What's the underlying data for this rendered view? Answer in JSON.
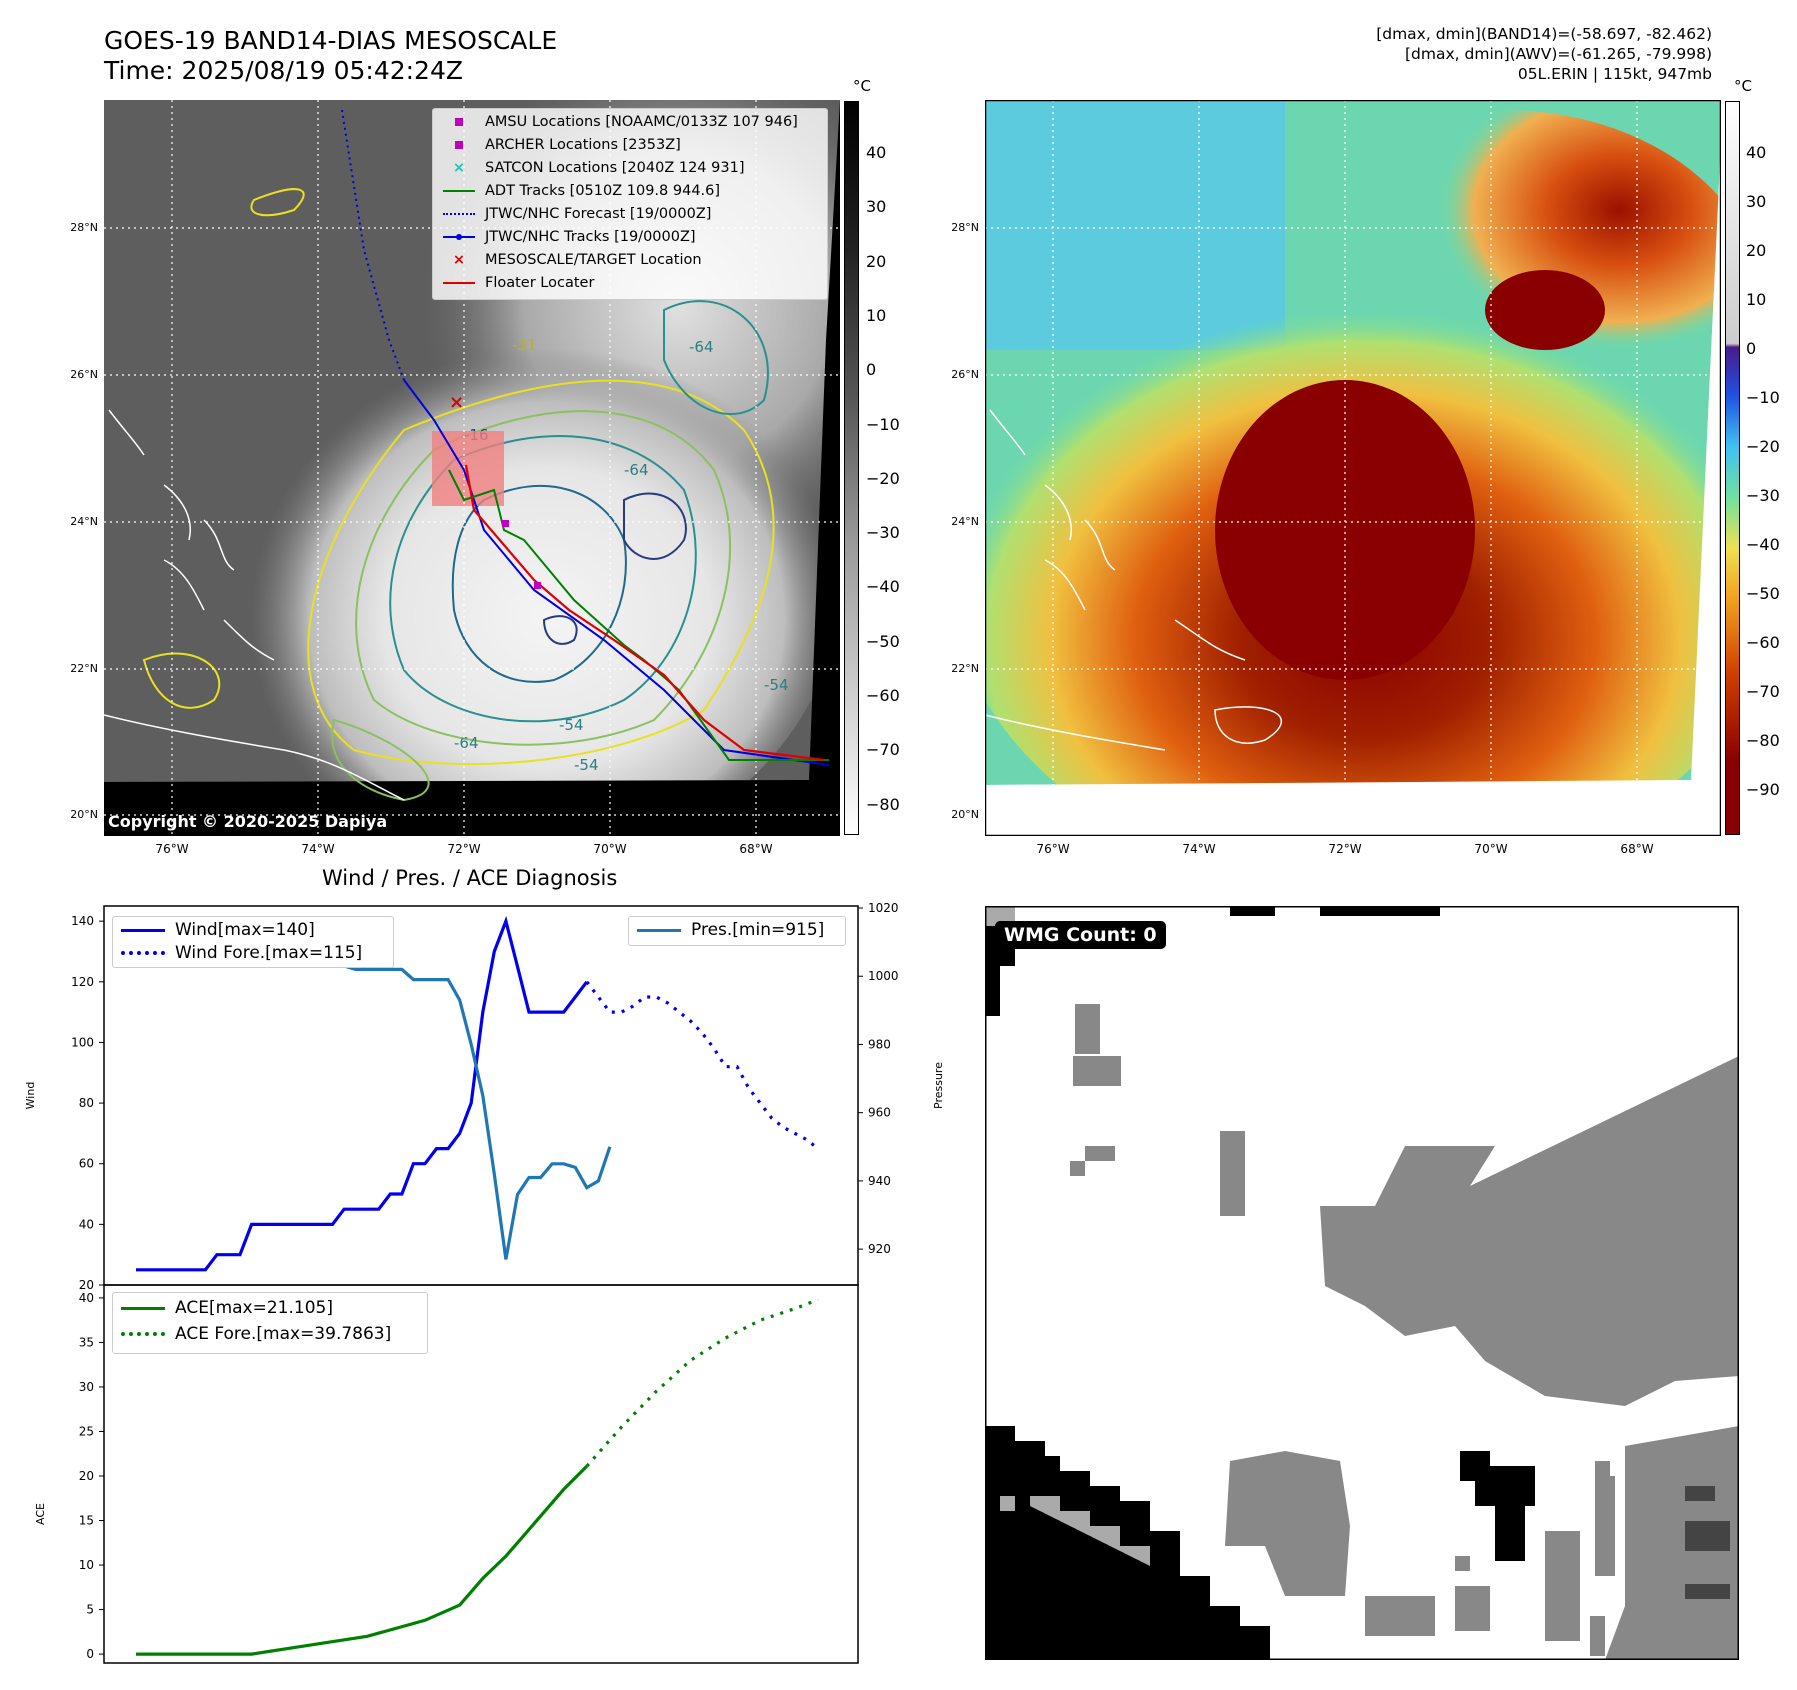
{
  "header": {
    "title_line1": "GOES-19 BAND14-DIAS MESOSCALE",
    "title_line2": "Time: 2025/08/19 05:42:24Z",
    "stats_line1": "[dmax, dmin](BAND14)=(-58.697, -82.462)",
    "stats_line2": "[dmax, dmin](AWV)=(-61.265, -79.998)",
    "stats_line3": "05L.ERIN | 115kt, 947mb"
  },
  "copyright": "Copyright © 2020-2025 Dapiya",
  "map": {
    "lon_labels": [
      "76°W",
      "74°W",
      "72°W",
      "70°W",
      "68°W"
    ],
    "lat_labels": [
      "28°N",
      "26°N",
      "24°N",
      "22°N",
      "20°N"
    ],
    "contour_labels": [
      "-64",
      "-31",
      "-16",
      "-64",
      "-64",
      "-54",
      "-54",
      "-54"
    ],
    "legend": [
      {
        "label": "AMSU Locations [NOAAMC/0133Z 107 946]",
        "symbol": "square",
        "color": "#c000c0"
      },
      {
        "label": "ARCHER Locations [2353Z]",
        "symbol": "square",
        "color": "#c000c0"
      },
      {
        "label": "SATCON Locations [2040Z 124 931]",
        "symbol": "x",
        "color": "#20c0c0"
      },
      {
        "label": "ADT Tracks [0510Z 109.8 944.6]",
        "symbol": "line",
        "color": "#008000"
      },
      {
        "label": "JTWC/NHC Forecast [19/0000Z]",
        "symbol": "dotted",
        "color": "#0000e0"
      },
      {
        "label": "JTWC/NHC Tracks [19/0000Z]",
        "symbol": "linedot",
        "color": "#0000e0"
      },
      {
        "label": "MESOSCALE/TARGET Location",
        "symbol": "x",
        "color": "#e00000"
      },
      {
        "label": "Floater Locater",
        "symbol": "line",
        "color": "#e00000"
      }
    ]
  },
  "colorbar_gray": {
    "unit": "°C",
    "ticks": [
      "40",
      "30",
      "20",
      "10",
      "0",
      "−10",
      "−20",
      "−30",
      "−40",
      "−50",
      "−60",
      "−70",
      "−80"
    ]
  },
  "colorbar_color": {
    "unit": "°C",
    "ticks": [
      "40",
      "30",
      "20",
      "10",
      "0",
      "−10",
      "−20",
      "−30",
      "−40",
      "−50",
      "−60",
      "−70",
      "−80",
      "−90"
    ]
  },
  "wmg": {
    "label": "WMG Count: 0"
  },
  "chart_data": [
    {
      "type": "line",
      "title": "Wind / Pres. / ACE Diagnosis",
      "ylabel": "Wind",
      "ylabel_right": "Pressure",
      "ylim": [
        20,
        145
      ],
      "ylim_right": [
        913,
        1020
      ],
      "yticks": [
        20,
        40,
        60,
        80,
        100,
        120,
        140
      ],
      "yticks_right": [
        920,
        940,
        960,
        980,
        1000,
        1020
      ],
      "x_count": 60,
      "series": [
        {
          "name": "Wind[max=140]",
          "style": "solid",
          "color": "#0000ee",
          "x": [
            0,
            1,
            2,
            3,
            4,
            5,
            6,
            7,
            8,
            9,
            10,
            11,
            12,
            13,
            14,
            15,
            16,
            17,
            18,
            19,
            20,
            21,
            22,
            23,
            24,
            25,
            26,
            27,
            28,
            29,
            30,
            31,
            32,
            33,
            34,
            35,
            36,
            37,
            38,
            39
          ],
          "values": [
            25,
            25,
            25,
            25,
            25,
            25,
            25,
            30,
            30,
            30,
            40,
            40,
            40,
            40,
            40,
            40,
            40,
            40,
            45,
            45,
            45,
            45,
            50,
            50,
            60,
            60,
            65,
            65,
            70,
            80,
            110,
            130,
            140,
            125,
            110,
            110,
            110,
            110,
            115,
            120
          ]
        },
        {
          "name": "Wind Fore.[max=115]",
          "style": "dotted",
          "color": "#0000ee",
          "x": [
            39,
            40,
            41,
            42,
            43,
            44,
            45,
            46,
            47,
            48,
            49,
            50,
            51,
            52,
            53,
            54,
            55,
            56,
            57,
            58,
            59
          ],
          "values": [
            120,
            115,
            110,
            110,
            112,
            115,
            115,
            113,
            110,
            107,
            103,
            98,
            92,
            92,
            85,
            80,
            75,
            72,
            70,
            68,
            65
          ]
        },
        {
          "name": "Pres.[min=915]",
          "style": "solid",
          "color": "#1f77b4",
          "axis": "right",
          "x": [
            0,
            1,
            2,
            3,
            4,
            5,
            6,
            7,
            8,
            9,
            10,
            11,
            12,
            13,
            14,
            15,
            16,
            17,
            18,
            19,
            20,
            21,
            22,
            23,
            24,
            25,
            26,
            27,
            28,
            29,
            30,
            31,
            32,
            33,
            34,
            35,
            36,
            37,
            38,
            39
          ],
          "values": [
            1013,
            1013,
            1008,
            1007,
            1006,
            1006,
            1006,
            1006,
            1006,
            1005,
            1005,
            1004,
            1004,
            1004,
            1004,
            1003,
            1003,
            1003,
            1003,
            1002,
            1002,
            1002,
            1002,
            1002,
            999,
            999,
            999,
            999,
            993,
            980,
            965,
            942,
            917,
            936,
            941,
            941,
            945,
            945,
            944,
            938
          ]
        }
      ],
      "extra_points": [
        {
          "series": "Pres.[min=915]",
          "x": [
            40,
            41
          ],
          "values": [
            940,
            950
          ]
        }
      ]
    },
    {
      "type": "line",
      "ylabel": "ACE",
      "ylim": [
        -1,
        41
      ],
      "yticks": [
        0,
        5,
        10,
        15,
        20,
        25,
        30,
        35,
        40
      ],
      "series": [
        {
          "name": "ACE[max=21.105]",
          "style": "solid",
          "color": "#008000",
          "x": [
            0,
            5,
            10,
            15,
            20,
            25,
            28,
            30,
            32,
            33,
            35,
            37,
            39
          ],
          "values": [
            0,
            0,
            0,
            1,
            2,
            3.8,
            5.5,
            8.5,
            11,
            12.5,
            15.5,
            18.5,
            21.1
          ]
        },
        {
          "name": "ACE Fore.[max=39.7863]",
          "style": "dotted",
          "color": "#008000",
          "x": [
            39,
            42,
            45,
            48,
            51,
            54,
            57,
            59
          ],
          "values": [
            21.1,
            25.5,
            29.5,
            33,
            35.5,
            37.5,
            38.8,
            39.8
          ]
        }
      ]
    }
  ]
}
